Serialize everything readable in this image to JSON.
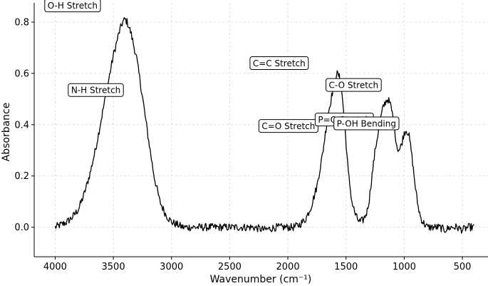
{
  "chart_data": {
    "type": "line",
    "title": "",
    "xlabel": "Wavenumber (cm⁻¹)",
    "ylabel": "Absorbance",
    "xlim": [
      4180,
      280
    ],
    "ylim": [
      -0.115,
      0.875
    ],
    "x_reversed": true,
    "grid": true,
    "line_color": "#000000",
    "x_ticks": [
      4000,
      3500,
      3000,
      2500,
      2000,
      1500,
      1000,
      500
    ],
    "x_tick_labels": [
      "4000",
      "3500",
      "3000",
      "2500",
      "2000",
      "1500",
      "1000",
      "500"
    ],
    "y_ticks": [
      0.0,
      0.2,
      0.4,
      0.6,
      0.8
    ],
    "y_tick_labels": [
      "0.0",
      "0.2",
      "0.4",
      "0.6",
      "0.8"
    ],
    "series": [
      {
        "x": [
          4000,
          3950,
          3900,
          3850,
          3800,
          3750,
          3700,
          3650,
          3600,
          3550,
          3500,
          3450,
          3420,
          3400,
          3380,
          3350,
          3300,
          3250,
          3200,
          3150,
          3100,
          3050,
          3000,
          2950,
          2900,
          2800,
          2700,
          2600,
          2500,
          2400,
          2300,
          2200,
          2100,
          2000,
          1950,
          1900,
          1850,
          1800,
          1750,
          1700,
          1680,
          1650,
          1620,
          1600,
          1580,
          1560,
          1540,
          1520,
          1500,
          1480,
          1450,
          1420,
          1400,
          1380,
          1350,
          1320,
          1300,
          1280,
          1250,
          1220,
          1200,
          1180,
          1160,
          1140,
          1120,
          1100,
          1080,
          1060,
          1040,
          1020,
          1000,
          980,
          960,
          940,
          920,
          900,
          880,
          860,
          840,
          820,
          800,
          780,
          750,
          700,
          650,
          600,
          550,
          500,
          450,
          400
        ],
        "y": [
          0.0,
          0.01,
          0.02,
          0.04,
          0.07,
          0.13,
          0.21,
          0.31,
          0.43,
          0.55,
          0.67,
          0.76,
          0.8,
          0.81,
          0.8,
          0.76,
          0.66,
          0.51,
          0.35,
          0.2,
          0.1,
          0.05,
          0.02,
          0.01,
          0.0,
          0.0,
          0.0,
          0.0,
          0.0,
          0.0,
          0.0,
          -0.01,
          0.0,
          0.0,
          0.0,
          0.01,
          0.03,
          0.08,
          0.16,
          0.29,
          0.36,
          0.45,
          0.52,
          0.57,
          0.6,
          0.59,
          0.54,
          0.45,
          0.33,
          0.21,
          0.1,
          0.05,
          0.03,
          0.02,
          0.03,
          0.06,
          0.11,
          0.19,
          0.3,
          0.38,
          0.43,
          0.47,
          0.49,
          0.5,
          0.48,
          0.44,
          0.37,
          0.31,
          0.3,
          0.33,
          0.37,
          0.38,
          0.36,
          0.3,
          0.22,
          0.14,
          0.08,
          0.04,
          0.02,
          0.01,
          0.0,
          0.0,
          0.0,
          0.0,
          -0.01,
          0.0,
          0.0,
          -0.01,
          0.0,
          0.0
        ]
      }
    ],
    "annotations": [
      {
        "text": "O-H Stretch",
        "x": 3850,
        "y": 0.865
      },
      {
        "text": "N-H Stretch",
        "x": 3650,
        "y": 0.535
      },
      {
        "text": "C=C Stretch",
        "x": 2075,
        "y": 0.64
      },
      {
        "text": "C-O Stretch",
        "x": 1435,
        "y": 0.555
      },
      {
        "text": "C=O Stretch",
        "x": 1995,
        "y": 0.395
      },
      {
        "text": "P=O Stretch",
        "x": 1515,
        "y": 0.42
      },
      {
        "text": "P-OH Bending",
        "x": 1325,
        "y": 0.405
      }
    ]
  }
}
